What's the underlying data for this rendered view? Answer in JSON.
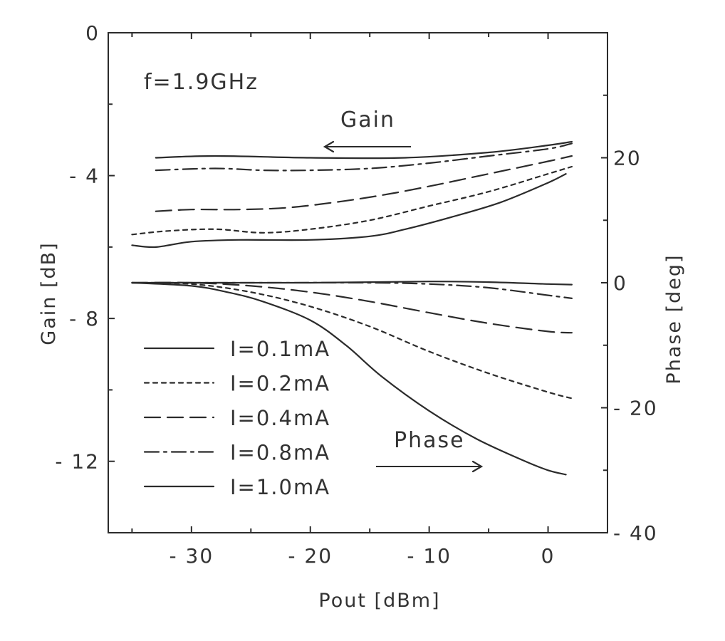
{
  "chart_data": {
    "type": "line",
    "title": "",
    "xlabel": "Pout [dBm]",
    "ylabel": "Gain [dB]",
    "y2label": "Phase [deg]",
    "xlim": [
      -37,
      5
    ],
    "ylim": [
      -14,
      0
    ],
    "y2lim": [
      -40,
      40
    ],
    "x_ticks": [
      -30,
      -20,
      -10,
      0
    ],
    "x_tick_labels": [
      "- 30",
      "- 20",
      "- 10",
      "0"
    ],
    "y_ticks": [
      0,
      -4,
      -8,
      -12
    ],
    "y_tick_labels": [
      "0",
      "- 4",
      "- 8",
      "- 12"
    ],
    "y2_ticks": [
      20,
      0,
      -20,
      -40
    ],
    "y2_tick_labels": [
      "20",
      "0",
      "- 20",
      "- 40"
    ],
    "grid": false,
    "legend_position": "bottom-left",
    "annotations": {
      "frequency": "f=1.9GHz",
      "gain_label": "Gain",
      "phase_label": "Phase"
    },
    "series": [
      {
        "name": "I=0.1mA",
        "dash": "solid",
        "gain": {
          "x": [
            -33,
            -28,
            -20,
            -12,
            -5,
            0,
            2
          ],
          "y": [
            -3.5,
            -3.45,
            -3.5,
            -3.5,
            -3.35,
            -3.15,
            -3.05
          ]
        },
        "phase": {
          "x": [
            -35,
            -28,
            -20,
            -10,
            -5,
            0,
            2
          ],
          "y": [
            0,
            0,
            0,
            0.2,
            0.1,
            -0.2,
            -0.3
          ]
        }
      },
      {
        "name": "I=0.2mA",
        "dash": "dotted",
        "gain": {
          "x": [
            -35,
            -32,
            -28,
            -24,
            -20,
            -15,
            -10,
            -5,
            0,
            2
          ],
          "y": [
            -5.65,
            -5.55,
            -5.5,
            -5.6,
            -5.5,
            -5.25,
            -4.85,
            -4.45,
            -3.95,
            -3.75
          ]
        },
        "phase": {
          "x": [
            -35,
            -30,
            -25,
            -20,
            -15,
            -10,
            -5,
            0,
            2
          ],
          "y": [
            0,
            -0.2,
            -1.5,
            -3.8,
            -7,
            -11,
            -14.5,
            -17.5,
            -18.5
          ]
        }
      },
      {
        "name": "I=0.4mA",
        "dash": "dashed",
        "gain": {
          "x": [
            -33,
            -30,
            -26,
            -22,
            -18,
            -14,
            -10,
            -5,
            0,
            2
          ],
          "y": [
            -5.0,
            -4.95,
            -4.95,
            -4.9,
            -4.75,
            -4.55,
            -4.3,
            -3.95,
            -3.6,
            -3.45
          ]
        },
        "phase": {
          "x": [
            -35,
            -30,
            -25,
            -20,
            -15,
            -10,
            -5,
            0,
            2
          ],
          "y": [
            0,
            0,
            -0.5,
            -1.5,
            -3,
            -4.8,
            -6.5,
            -7.8,
            -8
          ]
        }
      },
      {
        "name": "I=0.8mA",
        "dash": "dash-dot",
        "gain": {
          "x": [
            -33,
            -28,
            -24,
            -20,
            -15,
            -10,
            -5,
            0,
            2
          ],
          "y": [
            -3.85,
            -3.8,
            -3.85,
            -3.85,
            -3.8,
            -3.65,
            -3.45,
            -3.25,
            -3.1
          ]
        },
        "phase": {
          "x": [
            -35,
            -25,
            -15,
            -10,
            -5,
            0,
            2
          ],
          "y": [
            0,
            0,
            0,
            -0.2,
            -0.8,
            -2,
            -2.5
          ]
        }
      },
      {
        "name": "I=1.0mA",
        "dash": "solid",
        "gain": {
          "x": [
            -35,
            -33,
            -30,
            -26,
            -20,
            -15,
            -12,
            -8,
            -4,
            0,
            1.5
          ],
          "y": [
            -5.95,
            -6.0,
            -5.85,
            -5.8,
            -5.8,
            -5.7,
            -5.5,
            -5.15,
            -4.75,
            -4.2,
            -3.95
          ]
        },
        "phase": {
          "x": [
            -35,
            -30,
            -27,
            -24,
            -20,
            -17,
            -14,
            -10,
            -6,
            -2,
            0,
            1.5
          ],
          "y": [
            0,
            -0.5,
            -1.5,
            -3,
            -6,
            -10,
            -15,
            -20.5,
            -25,
            -28.5,
            -30,
            -30.7
          ]
        }
      }
    ],
    "legend": [
      "I=0.1mA",
      "I=0.2mA",
      "I=0.4mA",
      "I=0.8mA",
      "I=1.0mA"
    ]
  }
}
